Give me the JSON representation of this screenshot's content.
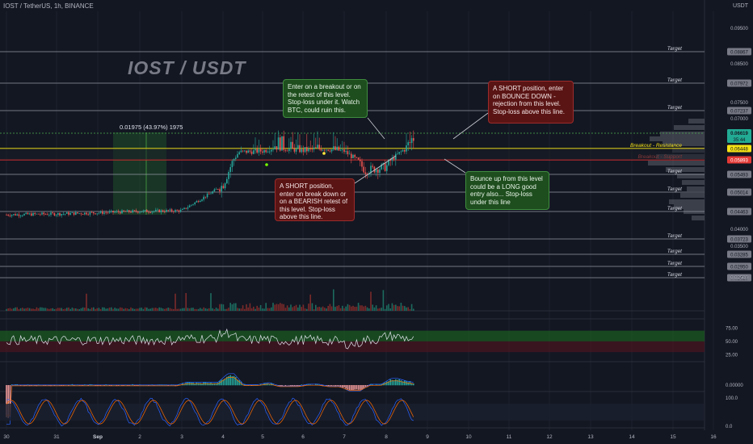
{
  "header": {
    "symbol_line": "IOST / TetherUS, 1h, BINANCE",
    "quote_currency": "USDT"
  },
  "watermark": "IOST / USDT",
  "measurement": "0.01975 (43.97%) 1975",
  "colors": {
    "bg": "#131722",
    "up": "#26a69a",
    "down": "#ef5350",
    "resistance": "#f5e214",
    "support": "#d32f2f",
    "guide": "#b2b5be",
    "current": "#4caf50",
    "green_box": "#1e4d1e",
    "red_box": "#5a1414"
  },
  "annotations": {
    "enter_breakout": "Enter on a breakout or on the retest of this level. Stop-loss under it. Watch BTC, could ruin this.",
    "short_bounce": "A SHORT position, enter on BOUNCE DOWN - rejection from this level. Stop-loss above this line.",
    "short_breakdown": "A SHORT position, enter on break down or on a BEARISH retest of this level. Stop-loss above this line.",
    "bounce_long": "Bounce up from this level could be a LONG good entry also... Stop-loss under this line"
  },
  "chart_data": {
    "type": "line",
    "title": "IOST / TetherUS, 1h, BINANCE",
    "xlabel": "",
    "ylabel": "",
    "x_ticks": [
      "30",
      "31",
      "Sep",
      "2",
      "3",
      "4",
      "5",
      "6",
      "7",
      "8",
      "9",
      "10",
      "11",
      "12",
      "13",
      "14",
      "15",
      "16"
    ],
    "y_ticks": [
      "0.09500",
      "0.08500",
      "0.07500",
      "0.07000",
      "0.04000",
      "0.03500",
      "0.02500"
    ],
    "ylim": [
      0.023,
      0.102
    ],
    "price_path": [
      {
        "x": "30",
        "y": 0.0438
      },
      {
        "x": "31",
        "y": 0.044
      },
      {
        "x": "Sep",
        "y": 0.0443
      },
      {
        "x": "2",
        "y": 0.0447
      },
      {
        "x": "3",
        "y": 0.0449
      },
      {
        "x": "4",
        "y": 0.052
      },
      {
        "x": "4.4",
        "y": 0.0627
      },
      {
        "x": "5",
        "y": 0.0633
      },
      {
        "x": "5.3",
        "y": 0.065
      },
      {
        "x": "6",
        "y": 0.0634
      },
      {
        "x": "6.5",
        "y": 0.0645
      },
      {
        "x": "7",
        "y": 0.0632
      },
      {
        "x": "7.5",
        "y": 0.056
      },
      {
        "x": "8",
        "y": 0.057
      },
      {
        "x": "8.4",
        "y": 0.0635
      },
      {
        "x": "8.7",
        "y": 0.0662
      }
    ],
    "levels": [
      {
        "label": "Target",
        "value": "0.08867",
        "kind": "target"
      },
      {
        "label": "Target",
        "value": "0.07972",
        "kind": "target"
      },
      {
        "label": "Target",
        "value": "0.07237",
        "kind": "target"
      },
      {
        "label": "Breakout - Resistance",
        "value": "0.06448",
        "kind": "resistance"
      },
      {
        "label": "Breakout - Support",
        "value": "0.05893",
        "kind": "support"
      },
      {
        "label": "Target",
        "value": "0.05493",
        "kind": "target"
      },
      {
        "label": "Target",
        "value": "0.05014",
        "kind": "target"
      },
      {
        "label": "Target",
        "value": "0.04463",
        "kind": "target"
      },
      {
        "label": "Target",
        "value": "0.03723",
        "kind": "target"
      },
      {
        "label": "Target",
        "value": "0.03285",
        "kind": "target"
      },
      {
        "label": "Target",
        "value": "0.02950",
        "kind": "target"
      },
      {
        "label": "Target",
        "value": "0.02629",
        "kind": "target"
      }
    ],
    "current_price": "0.06619",
    "countdown": "35:44",
    "rsi": {
      "ticks": [
        "75.00",
        "50.00",
        "25.00"
      ],
      "overbought": 70,
      "oversold": 30
    },
    "macd": {
      "ticks": [
        "0.00000"
      ]
    },
    "stoch": {
      "ticks": [
        "100.0",
        "0.0"
      ]
    }
  }
}
